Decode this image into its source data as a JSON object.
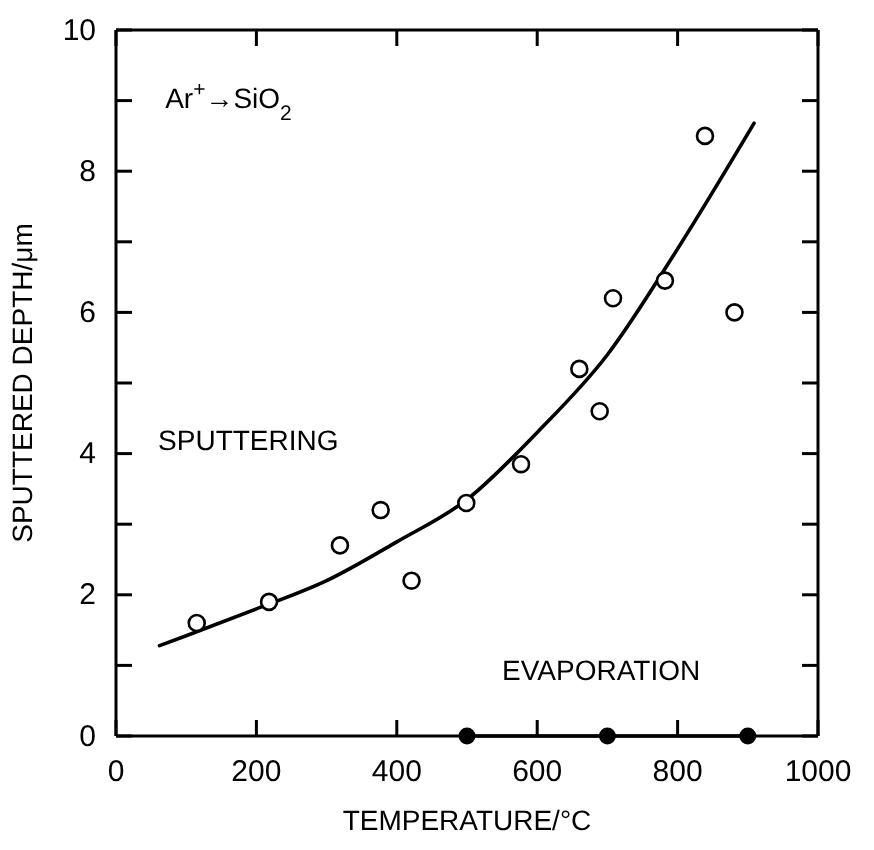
{
  "chart_data": {
    "type": "scatter",
    "xlabel": "TEMPERATURE/°C",
    "ylabel": "SPUTTERED DEPTH/μm",
    "xlim": [
      0,
      1000
    ],
    "xticks": [
      0,
      200,
      400,
      600,
      800,
      1000
    ],
    "ylim": [
      0,
      10
    ],
    "yticks": [
      0,
      {
        "value": 1,
        "label": null
      },
      2,
      {
        "value": 3,
        "label": null
      },
      4,
      {
        "value": 5,
        "label": null
      },
      6,
      {
        "value": 7,
        "label": null
      },
      8,
      {
        "value": 9,
        "label": null
      },
      10
    ],
    "grid": false,
    "marker": "circle",
    "annotations": [
      "Ar$^{+}$→SiO$_{2}$",
      "SPUTTERING",
      "EVAPORATION"
    ],
    "series": [
      {
        "color": "#000000",
        "x": [
          115,
          218,
          319,
          377,
          421,
          499,
          577,
          660,
          689,
          708,
          782,
          839,
          881
        ],
        "values": [
          1.6,
          1.9,
          2.7,
          3.2,
          2.2,
          3.3,
          3.85,
          5.2,
          4.6,
          6.2,
          6.45,
          8.5,
          6.0
        ]
      },
      {
        "type": "line",
        "marker": "none",
        "line_style": "solid",
        "color": "#000000",
        "x": [
          62,
          100,
          200,
          300,
          400,
          500,
          600,
          700,
          800,
          909
        ],
        "values": [
          1.28,
          1.42,
          1.8,
          2.2,
          2.75,
          3.35,
          4.3,
          5.4,
          6.9,
          8.68
        ]
      },
      {
        "type": "line",
        "marker": "circle",
        "line_style": "solid",
        "color": "#000000",
        "x": [
          500,
          700,
          900
        ],
        "values": [
          0,
          0,
          0
        ]
      }
    ]
  }
}
